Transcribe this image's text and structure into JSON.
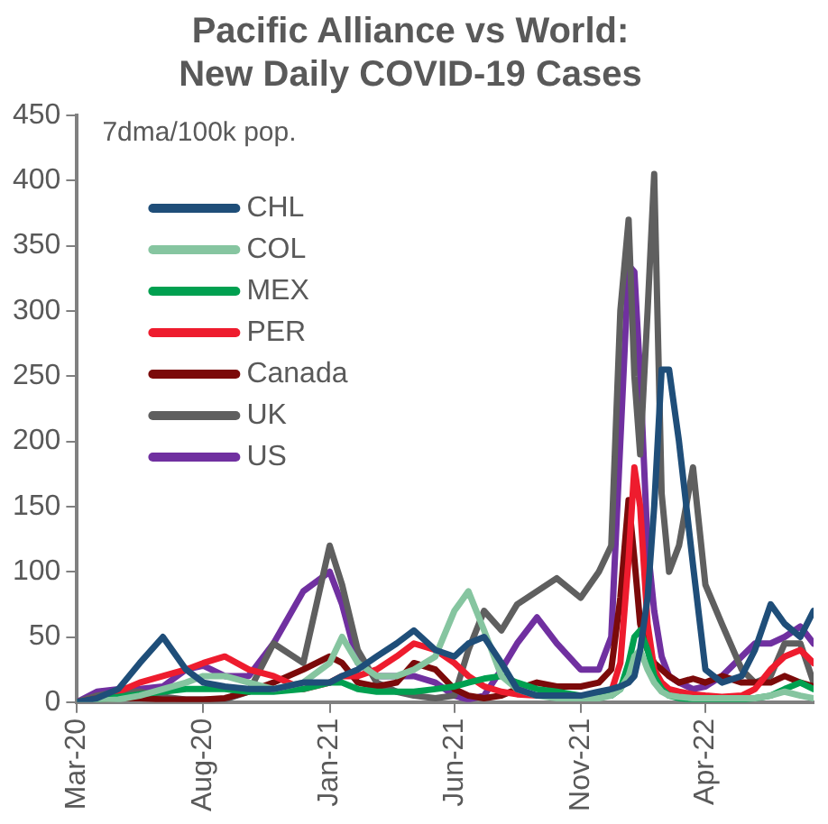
{
  "chart_data": {
    "type": "line",
    "title": "Pacific Alliance vs World:\nNew Daily COVID-19 Cases",
    "ylabel": "7dma/100k pop.",
    "x": [
      "2020-03-01",
      "2020-03-25",
      "2020-04-20",
      "2020-05-16",
      "2020-06-13",
      "2020-07-11",
      "2020-08-01",
      "2020-08-27",
      "2020-09-25",
      "2020-10-25",
      "2020-11-30",
      "2021-01-01",
      "2021-01-16",
      "2021-02-04",
      "2021-02-27",
      "2021-03-23",
      "2021-04-13",
      "2021-05-09",
      "2021-06-01",
      "2021-06-18",
      "2021-07-07",
      "2021-07-28",
      "2021-08-16",
      "2021-09-09",
      "2021-10-03",
      "2021-11-01",
      "2021-11-23",
      "2021-12-08",
      "2021-12-19",
      "2021-12-29",
      "2022-01-05",
      "2022-01-12",
      "2022-01-21",
      "2022-01-29",
      "2022-02-07",
      "2022-02-16",
      "2022-02-28",
      "2022-03-17",
      "2022-04-01",
      "2022-04-21",
      "2022-05-15",
      "2022-05-31",
      "2022-06-19",
      "2022-07-06",
      "2022-07-25",
      "2022-08-10"
    ],
    "series": [
      {
        "name": "CHL",
        "color": "#1f4e79",
        "values": [
          0,
          3,
          10,
          30,
          50,
          25,
          15,
          12,
          10,
          10,
          15,
          15,
          20,
          25,
          35,
          45,
          55,
          40,
          35,
          45,
          50,
          30,
          10,
          5,
          5,
          5,
          8,
          10,
          12,
          15,
          20,
          40,
          80,
          150,
          255,
          255,
          200,
          105,
          25,
          15,
          20,
          40,
          75,
          60,
          50,
          70
        ]
      },
      {
        "name": "COL",
        "color": "#86c5a0",
        "values": [
          0,
          1,
          2,
          5,
          10,
          15,
          20,
          20,
          15,
          10,
          15,
          30,
          50,
          30,
          20,
          20,
          25,
          35,
          70,
          85,
          55,
          20,
          10,
          5,
          3,
          3,
          3,
          5,
          10,
          20,
          35,
          40,
          25,
          15,
          8,
          5,
          4,
          3,
          3,
          3,
          3,
          3,
          5,
          8,
          5,
          3
        ]
      },
      {
        "name": "MEX",
        "color": "#00a050",
        "values": [
          0,
          2,
          4,
          6,
          8,
          10,
          10,
          10,
          8,
          8,
          10,
          15,
          15,
          10,
          8,
          8,
          8,
          10,
          12,
          15,
          18,
          20,
          15,
          10,
          8,
          5,
          5,
          5,
          10,
          30,
          50,
          55,
          40,
          20,
          10,
          5,
          3,
          2,
          2,
          2,
          2,
          3,
          5,
          10,
          15,
          10
        ]
      },
      {
        "name": "PER",
        "color": "#ee1c2e",
        "values": [
          0,
          3,
          8,
          15,
          20,
          25,
          30,
          35,
          25,
          20,
          10,
          15,
          20,
          20,
          25,
          35,
          45,
          40,
          30,
          20,
          12,
          8,
          6,
          5,
          5,
          5,
          5,
          8,
          30,
          110,
          180,
          150,
          60,
          25,
          15,
          10,
          8,
          6,
          5,
          4,
          5,
          10,
          25,
          35,
          40,
          30
        ]
      },
      {
        "name": "Canada",
        "color": "#7b0a0a",
        "values": [
          0,
          2,
          3,
          3,
          2,
          2,
          2,
          3,
          8,
          15,
          25,
          35,
          30,
          15,
          12,
          15,
          30,
          25,
          10,
          5,
          3,
          5,
          10,
          15,
          12,
          12,
          15,
          25,
          80,
          155,
          110,
          60,
          40,
          30,
          25,
          20,
          15,
          18,
          15,
          20,
          15,
          15,
          15,
          20,
          15,
          12
        ]
      },
      {
        "name": "UK",
        "color": "#5f5f5f",
        "values": [
          0,
          5,
          8,
          8,
          4,
          2,
          2,
          2,
          8,
          45,
          30,
          120,
          90,
          40,
          15,
          8,
          5,
          3,
          5,
          40,
          70,
          55,
          75,
          85,
          95,
          80,
          100,
          120,
          300,
          370,
          250,
          190,
          300,
          405,
          160,
          100,
          120,
          180,
          90,
          60,
          25,
          15,
          20,
          45,
          45,
          15
        ]
      },
      {
        "name": "US",
        "color": "#7030a0",
        "values": [
          0,
          8,
          10,
          10,
          12,
          25,
          28,
          20,
          20,
          45,
          85,
          100,
          75,
          30,
          20,
          20,
          20,
          15,
          5,
          2,
          5,
          25,
          45,
          65,
          45,
          25,
          25,
          50,
          200,
          335,
          330,
          250,
          120,
          70,
          35,
          20,
          15,
          10,
          12,
          20,
          35,
          45,
          45,
          50,
          58,
          45
        ]
      }
    ],
    "xlim": [
      "2020-03-01",
      "2022-08-10"
    ],
    "xticks": [
      {
        "value": "2020-03-01",
        "label": "Mar-20"
      },
      {
        "value": "2020-08-01",
        "label": "Aug-20"
      },
      {
        "value": "2021-01-01",
        "label": "Jan-21"
      },
      {
        "value": "2021-06-01",
        "label": "Jun-21"
      },
      {
        "value": "2021-11-01",
        "label": "Nov-21"
      },
      {
        "value": "2022-04-01",
        "label": "Apr-22"
      }
    ],
    "ylim": [
      0,
      450
    ],
    "yticks": [
      0,
      50,
      100,
      150,
      200,
      250,
      300,
      350,
      400,
      450
    ],
    "grid": false,
    "legend": "top left",
    "line_style": "solid",
    "marker": "none"
  }
}
